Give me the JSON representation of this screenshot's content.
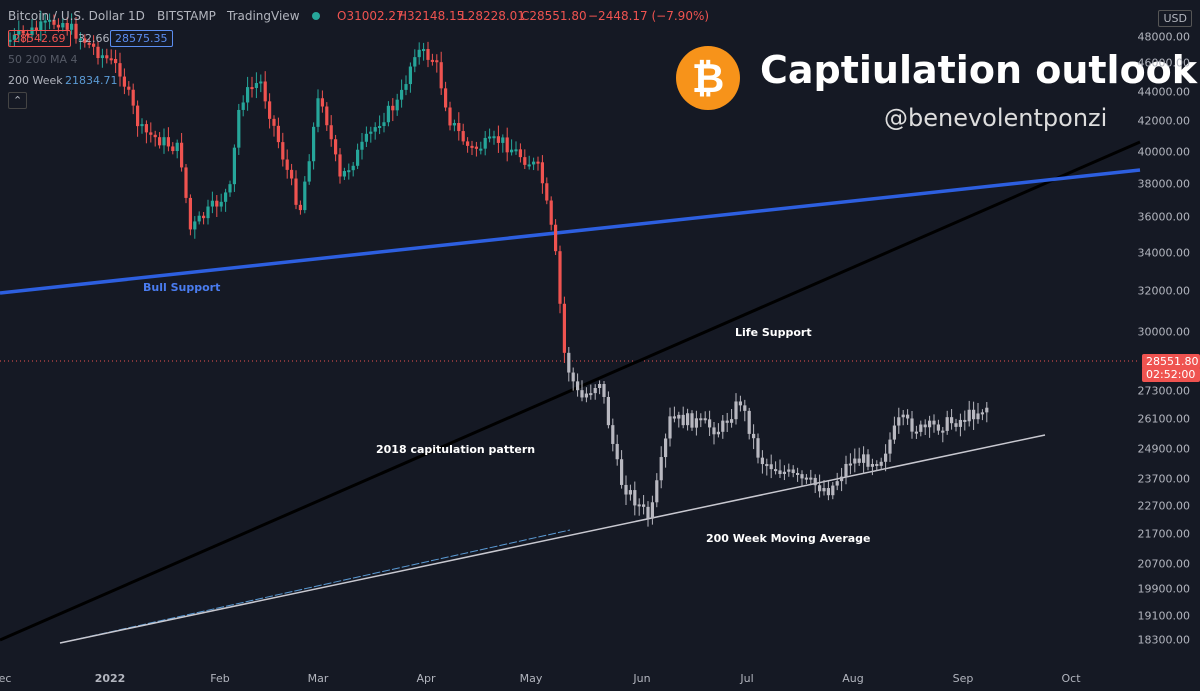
{
  "header": {
    "symbol": "Bitcoin / U.S. Dollar",
    "interval": "1D",
    "exchange": "BITSTAMP",
    "source": "TradingView",
    "open": "O31002.27",
    "high": "H32148.15",
    "low": "L28228.01",
    "close": "C28551.80",
    "change": "−2448.17 (−7.90%)"
  },
  "indicators": {
    "bid": "28542.69",
    "spread": "32.66",
    "ask": "28575.35",
    "ma": "50 200 MA 4",
    "week_label": "200 Week",
    "week_value": "21834.71"
  },
  "title": "Captiulation outlook",
  "author": "@benevolentponzi",
  "annotations": {
    "bull": "Bull Support",
    "life": "Life Support",
    "pattern": "2018 capitulation pattern",
    "ma200": "200 Week Moving Average"
  },
  "price_axis": {
    "currency": "USD",
    "labels": [
      "48000.00",
      "46000.00",
      "44000.00",
      "42000.00",
      "40000.00",
      "38000.00",
      "36000.00",
      "34000.00",
      "32000.00",
      "30000.00",
      "27300.00",
      "26100.00",
      "24900.00",
      "23700.00",
      "22700.00",
      "21700.00",
      "20700.00",
      "19900.00",
      "19100.00",
      "18300.00"
    ],
    "last_price": "28551.80",
    "countdown": "02:52:00"
  },
  "time_axis": [
    "ec",
    "2022",
    "Feb",
    "Mar",
    "Apr",
    "May",
    "Jun",
    "Jul",
    "Aug",
    "Sep",
    "Oct"
  ]
}
